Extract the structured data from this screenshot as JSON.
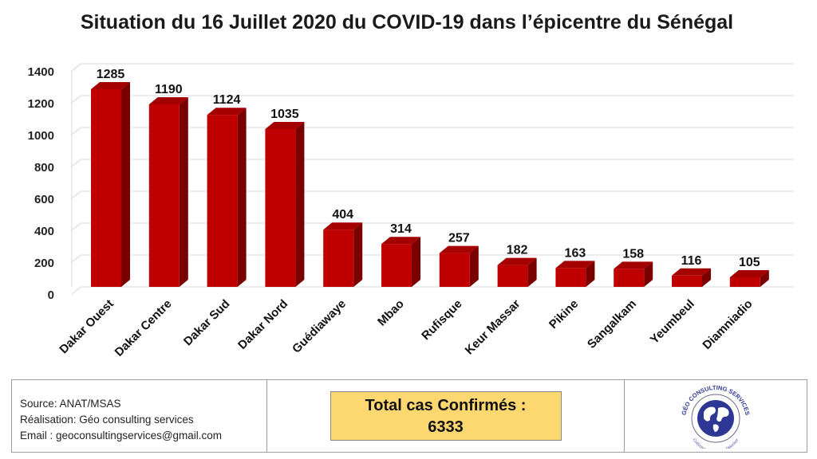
{
  "chart_data": {
    "type": "bar",
    "title": "Situation du 16 Juillet 2020 du COVID-19 dans l’épicentre du Sénégal",
    "categories": [
      "Dakar Ouest",
      "Dakar Centre",
      "Dakar Sud",
      "Dakar Nord",
      "Guédiawaye",
      "Mbao",
      "Rufisque",
      "Keur Massar",
      "Pikine",
      "Sangalkam",
      "Yeumbeul",
      "Diamniadio"
    ],
    "values": [
      1285,
      1190,
      1124,
      1035,
      404,
      314,
      257,
      182,
      163,
      158,
      116,
      105
    ],
    "yticks": [
      0,
      200,
      400,
      600,
      800,
      1000,
      1200,
      1400
    ],
    "ylim": [
      0,
      1400
    ],
    "grid": true,
    "bar_color": "#c00000",
    "xlabel": "",
    "ylabel": ""
  },
  "footer": {
    "source": "Source: ANAT/MSAS",
    "realisation": "Réalisation: Géo consulting services",
    "email": "Email : geoconsultingservices@gmail.com",
    "total_label": "Total cas Confirmés :",
    "total_value": "6333",
    "logo_text": "GÉO CONSULTING SERVICES",
    "logo_tagline": "Collecter, Analyser et Valoriser"
  }
}
